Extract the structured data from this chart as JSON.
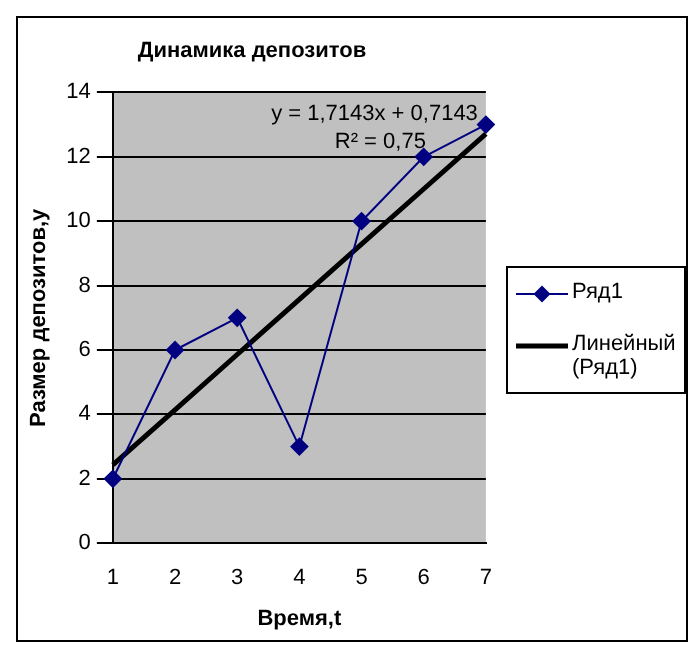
{
  "chart_data": {
    "type": "line",
    "title": "Динамика депозитов",
    "xlabel": "Время,t",
    "ylabel": "Размер депозитов,y",
    "categories": [
      "1",
      "2",
      "3",
      "4",
      "5",
      "6",
      "7"
    ],
    "series": [
      {
        "name": "Ряд1",
        "color": "#000080",
        "values": [
          2,
          6,
          7,
          3,
          10,
          12,
          13
        ],
        "marker": "diamond"
      },
      {
        "name": "Линейный (Ряд1)",
        "color": "#000000",
        "values": [
          2.43,
          4.14,
          5.86,
          7.57,
          9.29,
          11.0,
          12.71
        ],
        "marker": "none"
      }
    ],
    "ylim": [
      0,
      14
    ],
    "yticks": [
      0,
      2,
      4,
      6,
      8,
      10,
      12,
      14
    ],
    "grid": "y",
    "legend": "right",
    "annotations": [
      "y = 1,7143x + 0,7143",
      "R² = 0,75"
    ]
  }
}
